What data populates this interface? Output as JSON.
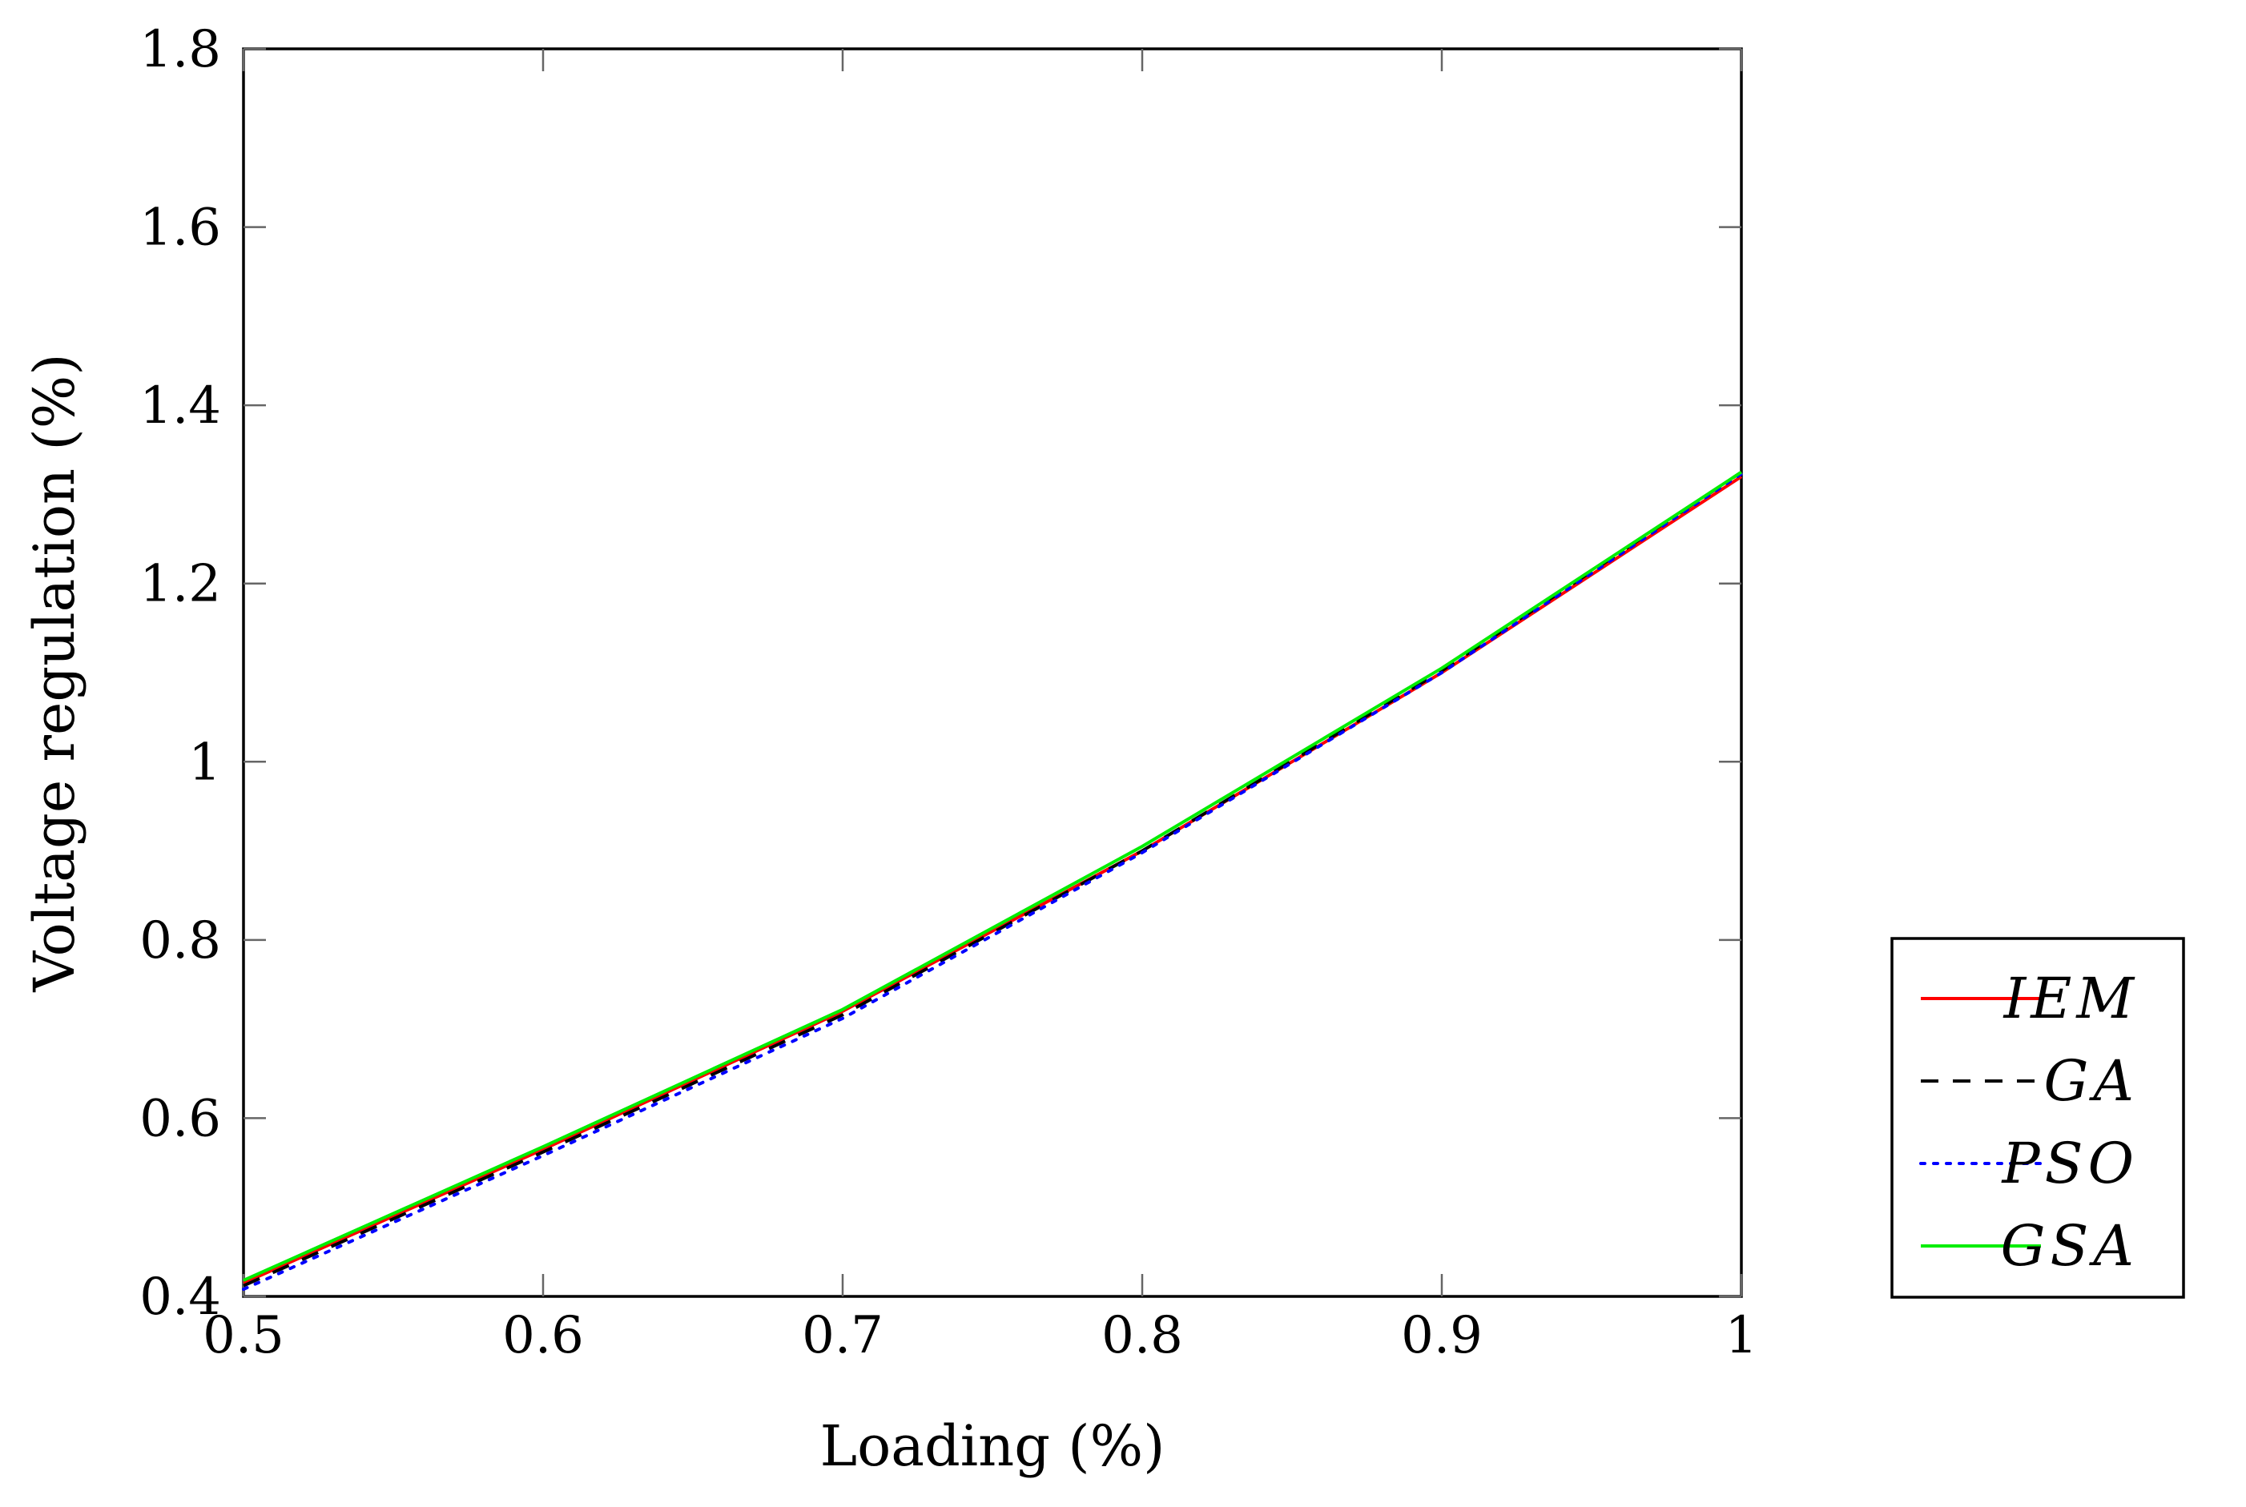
{
  "chart_data": {
    "type": "line",
    "title": "",
    "xlabel": "Loading (%)",
    "ylabel": "Voltage regulation (%)",
    "xlim": [
      0.5,
      1
    ],
    "ylim": [
      0.4,
      1.8
    ],
    "xticks": [
      "0.5",
      "0.6",
      "0.7",
      "0.8",
      "0.9",
      "1"
    ],
    "yticks": [
      "0.4",
      "0.6",
      "0.8",
      "1",
      "1.2",
      "1.4",
      "1.6",
      "1.8"
    ],
    "grid": false,
    "legend_position": "right",
    "x": [
      0.5,
      0.6,
      0.7,
      0.8,
      0.9,
      1.0
    ],
    "series": [
      {
        "name": "IEM",
        "values": [
          0.415,
          0.565,
          0.72,
          0.9,
          1.1,
          1.32
        ],
        "color": "#ff0000",
        "style": "solid"
      },
      {
        "name": "GA",
        "values": [
          0.412,
          0.562,
          0.716,
          0.9,
          1.102,
          1.325
        ],
        "color": "#000000",
        "style": "dashed"
      },
      {
        "name": "PSO",
        "values": [
          0.408,
          0.558,
          0.712,
          0.898,
          1.1,
          1.323
        ],
        "color": "#0000ff",
        "style": "dotted"
      },
      {
        "name": "GSA",
        "values": [
          0.418,
          0.568,
          0.722,
          0.905,
          1.105,
          1.325
        ],
        "color": "#00ee00",
        "style": "solid"
      }
    ]
  }
}
